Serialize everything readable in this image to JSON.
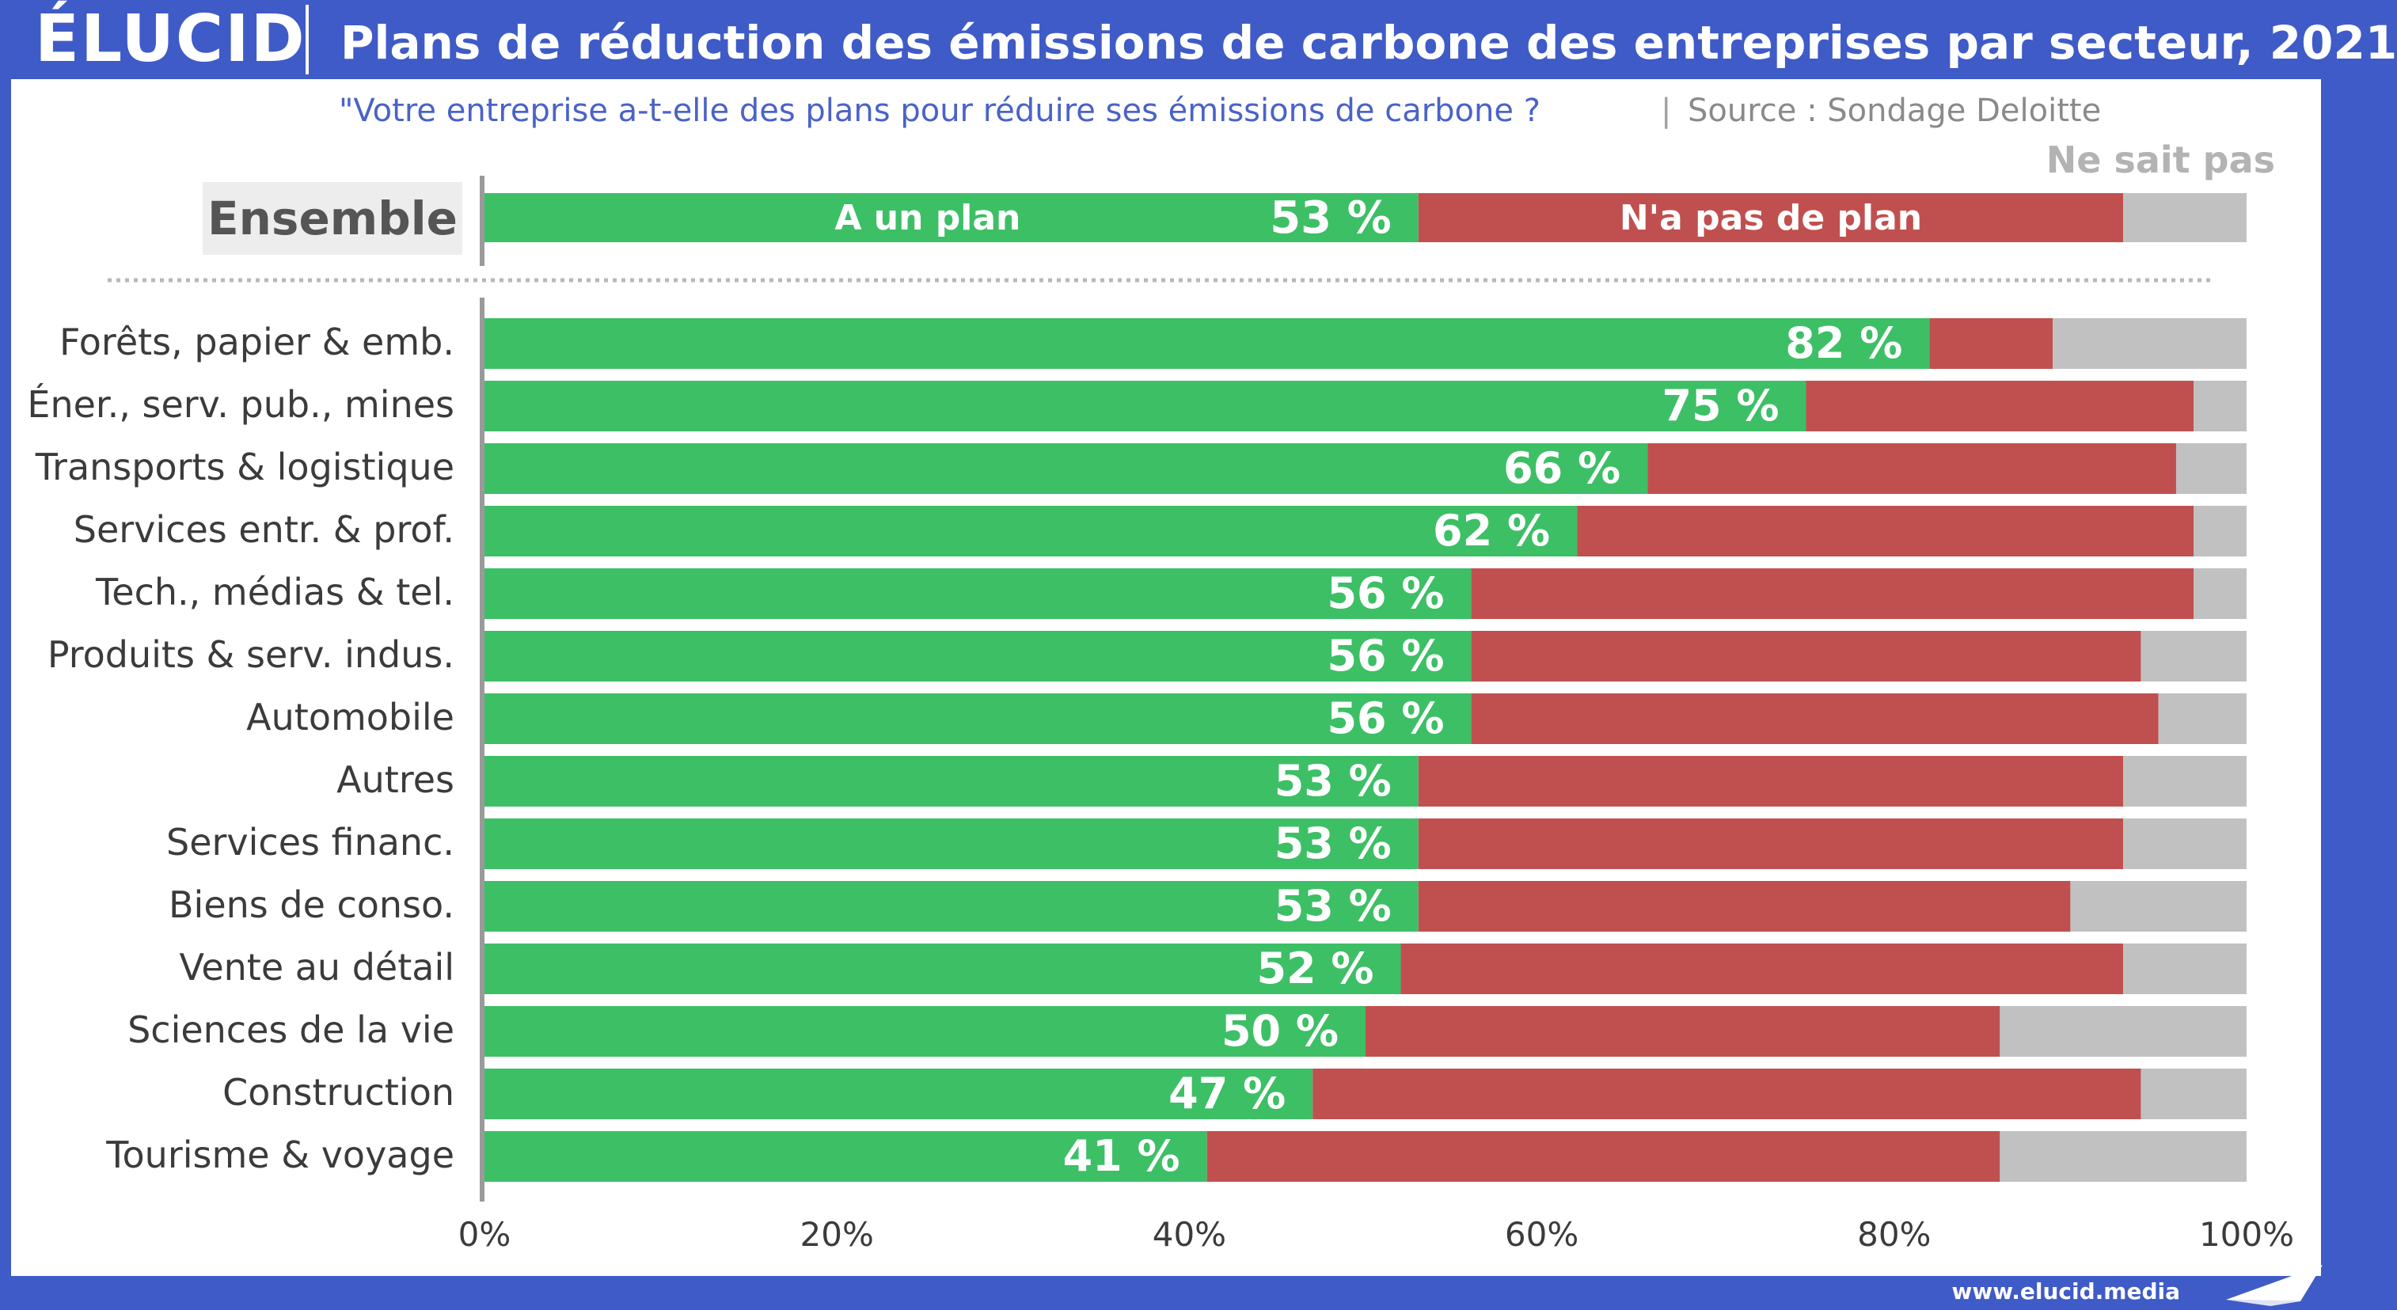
{
  "header": {
    "logo": "ÉLUCID",
    "title": "Plans de réduction des émissions de carbone des entreprises par secteur, 2021"
  },
  "subtitle": {
    "question": "\"Votre entreprise a-t-elle des plans pour réduire ses émissions de carbone ?",
    "separator": "|",
    "source": "Source : Sondage Deloitte"
  },
  "footer": {
    "url": "www.elucid.media"
  },
  "colors": {
    "has_plan": "#3dbf66",
    "no_plan": "#c0504f",
    "dont_know": "#c1c1c1",
    "brand": "#3f5bc7"
  },
  "icons": {
    "footer_mark": "paper-plane-icon"
  },
  "chart_data": {
    "type": "bar",
    "orientation": "horizontal",
    "stacked": true,
    "xlim": [
      0,
      100
    ],
    "x_ticks": [
      0,
      20,
      40,
      60,
      80,
      100
    ],
    "x_tick_labels": [
      "0%",
      "20%",
      "40%",
      "60%",
      "80%",
      "100%"
    ],
    "overall": {
      "label": "Ensemble",
      "has_plan": 53,
      "no_plan": 40,
      "dont_know": 7,
      "value_label": "53 %",
      "segment_labels": {
        "has_plan": "A un plan",
        "no_plan": "N'a pas de plan",
        "dont_know": "Ne sait pas"
      }
    },
    "categories": [
      "Forêts, papier & emb.",
      "Éner., serv. pub., mines",
      "Transports & logistique",
      "Services entr. & prof.",
      "Tech., médias & tel.",
      "Produits & serv. indus.",
      "Automobile",
      "Autres",
      "Services financ.",
      "Biens de conso.",
      "Vente au détail",
      "Sciences de la vie",
      "Construction",
      "Tourisme & voyage"
    ],
    "series": [
      {
        "name": "A un plan",
        "values": [
          82,
          75,
          66,
          62,
          56,
          56,
          56,
          53,
          53,
          53,
          52,
          50,
          47,
          41
        ]
      },
      {
        "name": "N'a pas de plan",
        "values": [
          7,
          22,
          30,
          35,
          41,
          38,
          39,
          40,
          40,
          37,
          41,
          36,
          47,
          45
        ]
      },
      {
        "name": "Ne sait pas",
        "values": [
          11,
          3,
          4,
          3,
          3,
          6,
          5,
          7,
          7,
          10,
          7,
          14,
          6,
          14
        ]
      }
    ],
    "value_labels": [
      "82 %",
      "75 %",
      "66 %",
      "62 %",
      "56 %",
      "56 %",
      "56 %",
      "53 %",
      "53 %",
      "53 %",
      "52 %",
      "50 %",
      "47 %",
      "41 %"
    ]
  }
}
